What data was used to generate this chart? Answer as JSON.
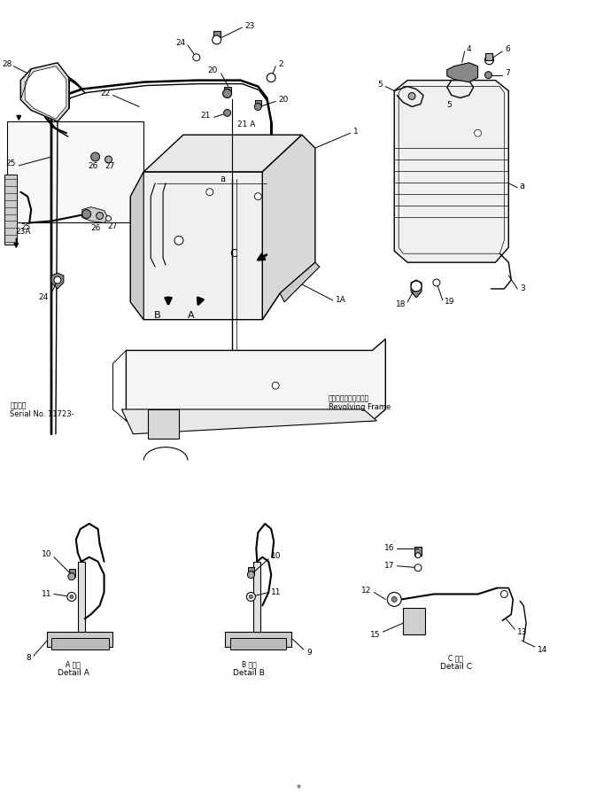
{
  "bg_color": "#ffffff",
  "line_color": "#000000",
  "fig_width": 6.73,
  "fig_height": 9.13,
  "dpi": 100,
  "labels": {
    "revolving_frame_jp": "レボルビングフレーム",
    "revolving_frame_en": "Revolving Frame",
    "serial_jp": "適用号機",
    "serial_en": "Serial No. 11723-",
    "detail_a_jp": "A 詳細",
    "detail_a_en": "Detail A",
    "detail_b_jp": "B 詳細",
    "detail_b_en": "Detail B",
    "detail_c_jp": "C 詳細",
    "detail_c_en": "Detail C"
  }
}
